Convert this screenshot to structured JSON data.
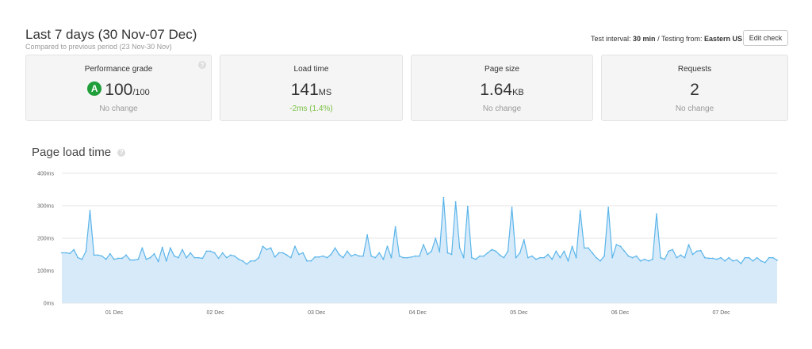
{
  "header": {
    "title": "Last 7 days (30 Nov-07 Dec)",
    "subtitle": "Compared to previous period (23 Nov-30 Nov)"
  },
  "test_info": {
    "interval_label": "Test interval:",
    "interval_value": "30 min",
    "separator": "/",
    "location_label": "Testing from:",
    "location_value": "Eastern US"
  },
  "edit_button": "Edit check",
  "cards": {
    "grade": {
      "title": "Performance grade",
      "badge": "A",
      "value": "100",
      "unit": "/100",
      "change": "No change"
    },
    "load": {
      "title": "Load time",
      "value": "141",
      "unit": "MS",
      "change": "-2ms (1.4%)"
    },
    "size": {
      "title": "Page size",
      "value": "1.64",
      "unit": "KB",
      "change": "No change"
    },
    "requests": {
      "title": "Requests",
      "value": "2",
      "change": "No change"
    }
  },
  "help_icon_glyph": "?",
  "section_title": "Page load time",
  "colors": {
    "line": "#5bb5ea",
    "fill": "#d6eafa",
    "grade_badge": "#1f9e3a",
    "positive_change": "#7ac142"
  },
  "chart_data": {
    "type": "area",
    "title": "Page load time",
    "xlabel": "",
    "ylabel": "",
    "ylim": [
      0,
      400
    ],
    "yticks": [
      0,
      100,
      200,
      300,
      400
    ],
    "ytick_labels": [
      "0ms",
      "100ms",
      "200ms",
      "300ms",
      "400ms"
    ],
    "grid": true,
    "xlim": [
      0,
      205
    ],
    "xticks": [
      15,
      44,
      73,
      102,
      131,
      160,
      189
    ],
    "xtick_labels": [
      "01 Dec",
      "02 Dec",
      "03 Dec",
      "04 Dec",
      "05 Dec",
      "06 Dec",
      "07 Dec"
    ],
    "series": [
      {
        "values": [
          155,
          155,
          153,
          165,
          140,
          135,
          160,
          285,
          148,
          148,
          145,
          135,
          152,
          135,
          138,
          138,
          148,
          133,
          133,
          135,
          170,
          135,
          140,
          152,
          128,
          172,
          130,
          170,
          145,
          140,
          165,
          140,
          155,
          140,
          140,
          138,
          160,
          160,
          155,
          138,
          155,
          140,
          148,
          145,
          135,
          130,
          120,
          130,
          130,
          140,
          175,
          165,
          170,
          142,
          155,
          155,
          148,
          140,
          175,
          150,
          155,
          130,
          130,
          142,
          142,
          145,
          140,
          150,
          170,
          150,
          140,
          160,
          145,
          150,
          145,
          145,
          210,
          145,
          140,
          155,
          135,
          175,
          140,
          235,
          145,
          140,
          140,
          142,
          145,
          145,
          180,
          150,
          160,
          200,
          158,
          325,
          155,
          150,
          312,
          170,
          140,
          298,
          140,
          135,
          145,
          145,
          155,
          165,
          160,
          148,
          140,
          160,
          295,
          140,
          155,
          195,
          140,
          145,
          135,
          140,
          140,
          150,
          135,
          160,
          140,
          160,
          130,
          175,
          140,
          285,
          170,
          170,
          155,
          140,
          130,
          145,
          295,
          140,
          180,
          175,
          160,
          145,
          140,
          145,
          130,
          135,
          130,
          135,
          275,
          140,
          135,
          160,
          165,
          140,
          148,
          140,
          180,
          150,
          160,
          162,
          140,
          138,
          138,
          135,
          140,
          130,
          140,
          130,
          133,
          122,
          140,
          140,
          130,
          140,
          130,
          125,
          140,
          140,
          132
        ]
      }
    ]
  }
}
